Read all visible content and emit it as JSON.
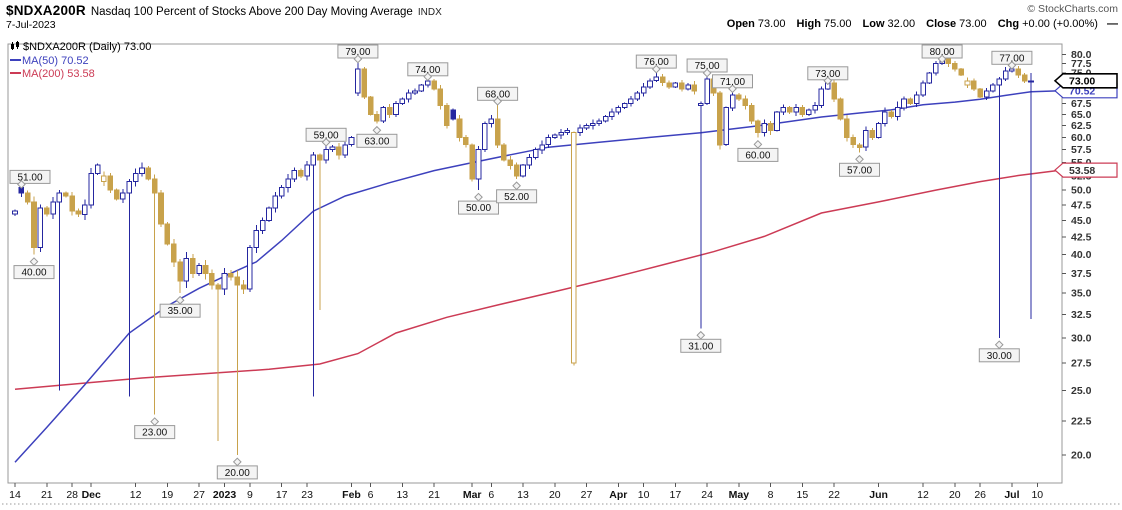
{
  "header": {
    "symbol": "$NDXA200R",
    "name": "Nasdaq 100 Percent of Stocks Above 200 Day Moving Average",
    "exchange": "INDX",
    "date": "7-Jul-2023",
    "credit": "© StockCharts.com",
    "ohlc": {
      "open_label": "Open",
      "open": "73.00",
      "high_label": "High",
      "high": "75.00",
      "low_label": "Low",
      "low": "32.00",
      "close_label": "Close",
      "close": "73.00",
      "chg_label": "Chg",
      "chg": "+0.00 (+0.00%)",
      "dash": "—"
    }
  },
  "legend": {
    "main": "$NDXA200R (Daily) 73.00",
    "ma50": "MA(50) 70.52",
    "ma200": "MA(200) 53.58"
  },
  "colors": {
    "up": "#2527a0",
    "down": "#c8a24b",
    "ma50": "#3d41bd",
    "ma200": "#cc3b55",
    "axis_text": "#333333",
    "tick": "#555555",
    "border": "#999999",
    "label_box_bg": "#f4f4f4",
    "label_box_border": "#999999",
    "tag_close": "#000000",
    "tag_ma50": "#3d41bd",
    "tag_ma200": "#cc3b55"
  },
  "chart_data": {
    "type": "candlestick",
    "symbol": "$NDXA200R",
    "timeframe": "Daily",
    "title": "$NDXA200R Nasdaq 100 Percent of Stocks Above 200 Day Moving Average INDX",
    "last": {
      "open": 73.0,
      "high": 75.0,
      "low": 32.0,
      "close": 73.0,
      "chg": "+0.00 (+0.00%)"
    },
    "ma50_last": 70.52,
    "ma200_last": 53.58,
    "y_axis": {
      "min": 20,
      "max": 80,
      "step": 2.5,
      "scale": "log",
      "side": "right"
    },
    "x_ticks": [
      {
        "i": 0,
        "l": "14"
      },
      {
        "i": 5,
        "l": "21"
      },
      {
        "i": 9,
        "l": "28"
      },
      {
        "i": 12,
        "l": "Dec",
        "b": 1
      },
      {
        "i": 19,
        "l": "12"
      },
      {
        "i": 24,
        "l": "19"
      },
      {
        "i": 29,
        "l": "27"
      },
      {
        "i": 33,
        "l": "2023",
        "b": 1
      },
      {
        "i": 37,
        "l": "9"
      },
      {
        "i": 42,
        "l": "17"
      },
      {
        "i": 46,
        "l": "23"
      },
      {
        "i": 53,
        "l": "Feb",
        "b": 1
      },
      {
        "i": 56,
        "l": "6"
      },
      {
        "i": 61,
        "l": "13"
      },
      {
        "i": 66,
        "l": "21"
      },
      {
        "i": 72,
        "l": "Mar",
        "b": 1
      },
      {
        "i": 75,
        "l": "6"
      },
      {
        "i": 80,
        "l": "13"
      },
      {
        "i": 85,
        "l": "20"
      },
      {
        "i": 90,
        "l": "27"
      },
      {
        "i": 95,
        "l": "Apr",
        "b": 1
      },
      {
        "i": 99,
        "l": "10"
      },
      {
        "i": 104,
        "l": "17"
      },
      {
        "i": 109,
        "l": "24"
      },
      {
        "i": 114,
        "l": "May",
        "b": 1
      },
      {
        "i": 119,
        "l": "8"
      },
      {
        "i": 124,
        "l": "15"
      },
      {
        "i": 129,
        "l": "22"
      },
      {
        "i": 136,
        "l": "Jun",
        "b": 1
      },
      {
        "i": 143,
        "l": "12"
      },
      {
        "i": 148,
        "l": "20"
      },
      {
        "i": 152,
        "l": "26"
      },
      {
        "i": 157,
        "l": "Jul",
        "b": 1
      },
      {
        "i": 161,
        "l": "10"
      }
    ],
    "closes": [
      46.5,
      49.5,
      48,
      41,
      47,
      46,
      48,
      49.5,
      49,
      46.5,
      46,
      47.5,
      53,
      54.5,
      52.5,
      50,
      48.5,
      49.5,
      51.5,
      53,
      54,
      52,
      49.5,
      44.5,
      41.5,
      39,
      36.5,
      39.5,
      37.5,
      38.5,
      37.5,
      36,
      35.5,
      37.5,
      37,
      36,
      35.5,
      41,
      43.5,
      45,
      47,
      49,
      50.5,
      52,
      53.5,
      52.5,
      54.5,
      56.5,
      55.5,
      57.5,
      58,
      56.5,
      58.5,
      60,
      76,
      69,
      65,
      63.5,
      66.5,
      65,
      67.5,
      68.5,
      70,
      70.5,
      72,
      73,
      71,
      67,
      62.5,
      64,
      60,
      58.5,
      52,
      57.5,
      63,
      64,
      58.5,
      55.5,
      54.5,
      52.5,
      54.5,
      56,
      57.5,
      58.5,
      60,
      60.5,
      61,
      61.5,
      61,
      62,
      62.5,
      63,
      63.5,
      64.5,
      65.5,
      66.5,
      67.5,
      68.5,
      70,
      71.5,
      73,
      74,
      72.5,
      71.5,
      72.5,
      71,
      72,
      70.5,
      67.5,
      73.5,
      70,
      58.5,
      66.5,
      69.5,
      68.5,
      67,
      63.5,
      61,
      63,
      61.5,
      65.5,
      66.5,
      65.5,
      66.5,
      65,
      66,
      67,
      71,
      72.5,
      68.5,
      64,
      60,
      58.5,
      58,
      61.5,
      60,
      63,
      65.5,
      64.5,
      66.5,
      68.5,
      67.5,
      69.5,
      72.5,
      75,
      77.5,
      79,
      77.5,
      76,
      74.5,
      73,
      71,
      69,
      70.5,
      72,
      73.5,
      75.5,
      76,
      74.5,
      73,
      73
    ],
    "open_overrides": {
      "0": 46,
      "1": 50.5,
      "14": 51.5,
      "54": 70,
      "69": 66,
      "88": 27.5,
      "108": 67,
      "150": 72,
      "160": 73
    },
    "high_overrides": {
      "1": 51,
      "12": 54,
      "20": 55,
      "49": 59,
      "54": 79,
      "65": 74,
      "76": 68,
      "101": 76,
      "108": 68,
      "109": 75,
      "113": 71,
      "128": 73,
      "137": 66.5,
      "139": 68,
      "146": 80,
      "147": 79.5,
      "155": 74,
      "156": 76.5,
      "157": 77,
      "160": 75
    },
    "low_overrides": {
      "3": 40,
      "7": 25,
      "18": 24.5,
      "22": 23,
      "26": 35,
      "32": 21,
      "35": 20,
      "47": 24.5,
      "48": 33,
      "57": 63,
      "72": 51.5,
      "73": 50,
      "79": 52,
      "108": 31,
      "111": 57.5,
      "117": 60,
      "119": 60.5,
      "133": 57,
      "155": 30,
      "160": 32
    },
    "color_overrides": {
      "108": "b",
      "160": "b"
    },
    "ma50": [
      [
        0,
        19.5
      ],
      [
        5,
        22
      ],
      [
        11,
        25.5
      ],
      [
        18,
        30.5
      ],
      [
        24,
        33.5
      ],
      [
        29,
        35.6
      ],
      [
        34,
        37.5
      ],
      [
        38,
        39
      ],
      [
        42,
        42
      ],
      [
        47,
        46.5
      ],
      [
        52,
        49
      ],
      [
        59,
        51.3
      ],
      [
        66,
        53.5
      ],
      [
        72,
        55
      ],
      [
        78,
        56.5
      ],
      [
        84,
        58
      ],
      [
        92,
        59
      ],
      [
        100,
        60
      ],
      [
        108,
        61
      ],
      [
        116,
        62.3
      ],
      [
        121,
        63.2
      ],
      [
        127,
        64.4
      ],
      [
        133,
        65.3
      ],
      [
        138,
        66
      ],
      [
        143,
        67.2
      ],
      [
        148,
        67.8
      ],
      [
        152,
        68.5
      ],
      [
        156,
        69.4
      ],
      [
        160,
        70.3
      ],
      [
        166,
        70.52
      ]
    ],
    "ma200": [
      [
        0,
        25.1
      ],
      [
        10,
        25.6
      ],
      [
        20,
        26.1
      ],
      [
        30,
        26.5
      ],
      [
        40,
        26.9
      ],
      [
        48,
        27.4
      ],
      [
        54,
        28.4
      ],
      [
        60,
        30.5
      ],
      [
        68,
        32.2
      ],
      [
        76,
        33.6
      ],
      [
        85,
        35.2
      ],
      [
        94,
        36.9
      ],
      [
        102,
        38.6
      ],
      [
        110,
        40.4
      ],
      [
        118,
        42.6
      ],
      [
        127,
        46.2
      ],
      [
        136,
        48
      ],
      [
        145,
        50
      ],
      [
        152,
        51.5
      ],
      [
        158,
        52.6
      ],
      [
        166,
        53.58
      ]
    ],
    "annotations": [
      {
        "i": 1,
        "v": 51,
        "t": "51.00",
        "s": "a"
      },
      {
        "i": 3,
        "v": 40,
        "t": "40.00",
        "s": "b"
      },
      {
        "i": 22,
        "v": 23,
        "t": "23.00",
        "s": "b"
      },
      {
        "i": 26,
        "v": 35,
        "t": "35.00",
        "s": "b"
      },
      {
        "i": 35,
        "v": 20,
        "t": "20.00",
        "s": "b"
      },
      {
        "i": 49,
        "v": 59,
        "t": "59.00",
        "s": "a"
      },
      {
        "i": 54,
        "v": 79,
        "t": "79.00",
        "s": "a"
      },
      {
        "i": 57,
        "v": 63,
        "t": "63.00",
        "s": "b"
      },
      {
        "i": 65,
        "v": 74,
        "t": "74.00",
        "s": "a"
      },
      {
        "i": 73,
        "v": 50,
        "t": "50.00",
        "s": "b"
      },
      {
        "i": 76,
        "v": 68,
        "t": "68.00",
        "s": "a"
      },
      {
        "i": 79,
        "v": 52,
        "t": "52.00",
        "s": "b"
      },
      {
        "i": 101,
        "v": 76,
        "t": "76.00",
        "s": "a"
      },
      {
        "i": 108,
        "v": 31,
        "t": "31.00",
        "s": "b"
      },
      {
        "i": 109,
        "v": 75,
        "t": "75.00",
        "s": "a"
      },
      {
        "i": 113,
        "v": 71,
        "t": "71.00",
        "s": "a"
      },
      {
        "i": 117,
        "v": 60,
        "t": "60.00",
        "s": "b"
      },
      {
        "i": 128,
        "v": 73,
        "t": "73.00",
        "s": "a"
      },
      {
        "i": 133,
        "v": 57,
        "t": "57.00",
        "s": "b"
      },
      {
        "i": 146,
        "v": 80,
        "t": "80.00",
        "s": "a"
      },
      {
        "i": 155,
        "v": 30,
        "t": "30.00",
        "s": "b"
      },
      {
        "i": 157,
        "v": 77,
        "t": "77.00",
        "s": "a"
      }
    ],
    "right_tags": [
      {
        "t": "70.52",
        "v": 70.52,
        "c": "ma50"
      },
      {
        "t": "73.00",
        "v": 73,
        "c": "close"
      },
      {
        "t": "53.58",
        "v": 53.58,
        "c": "ma200"
      }
    ]
  }
}
